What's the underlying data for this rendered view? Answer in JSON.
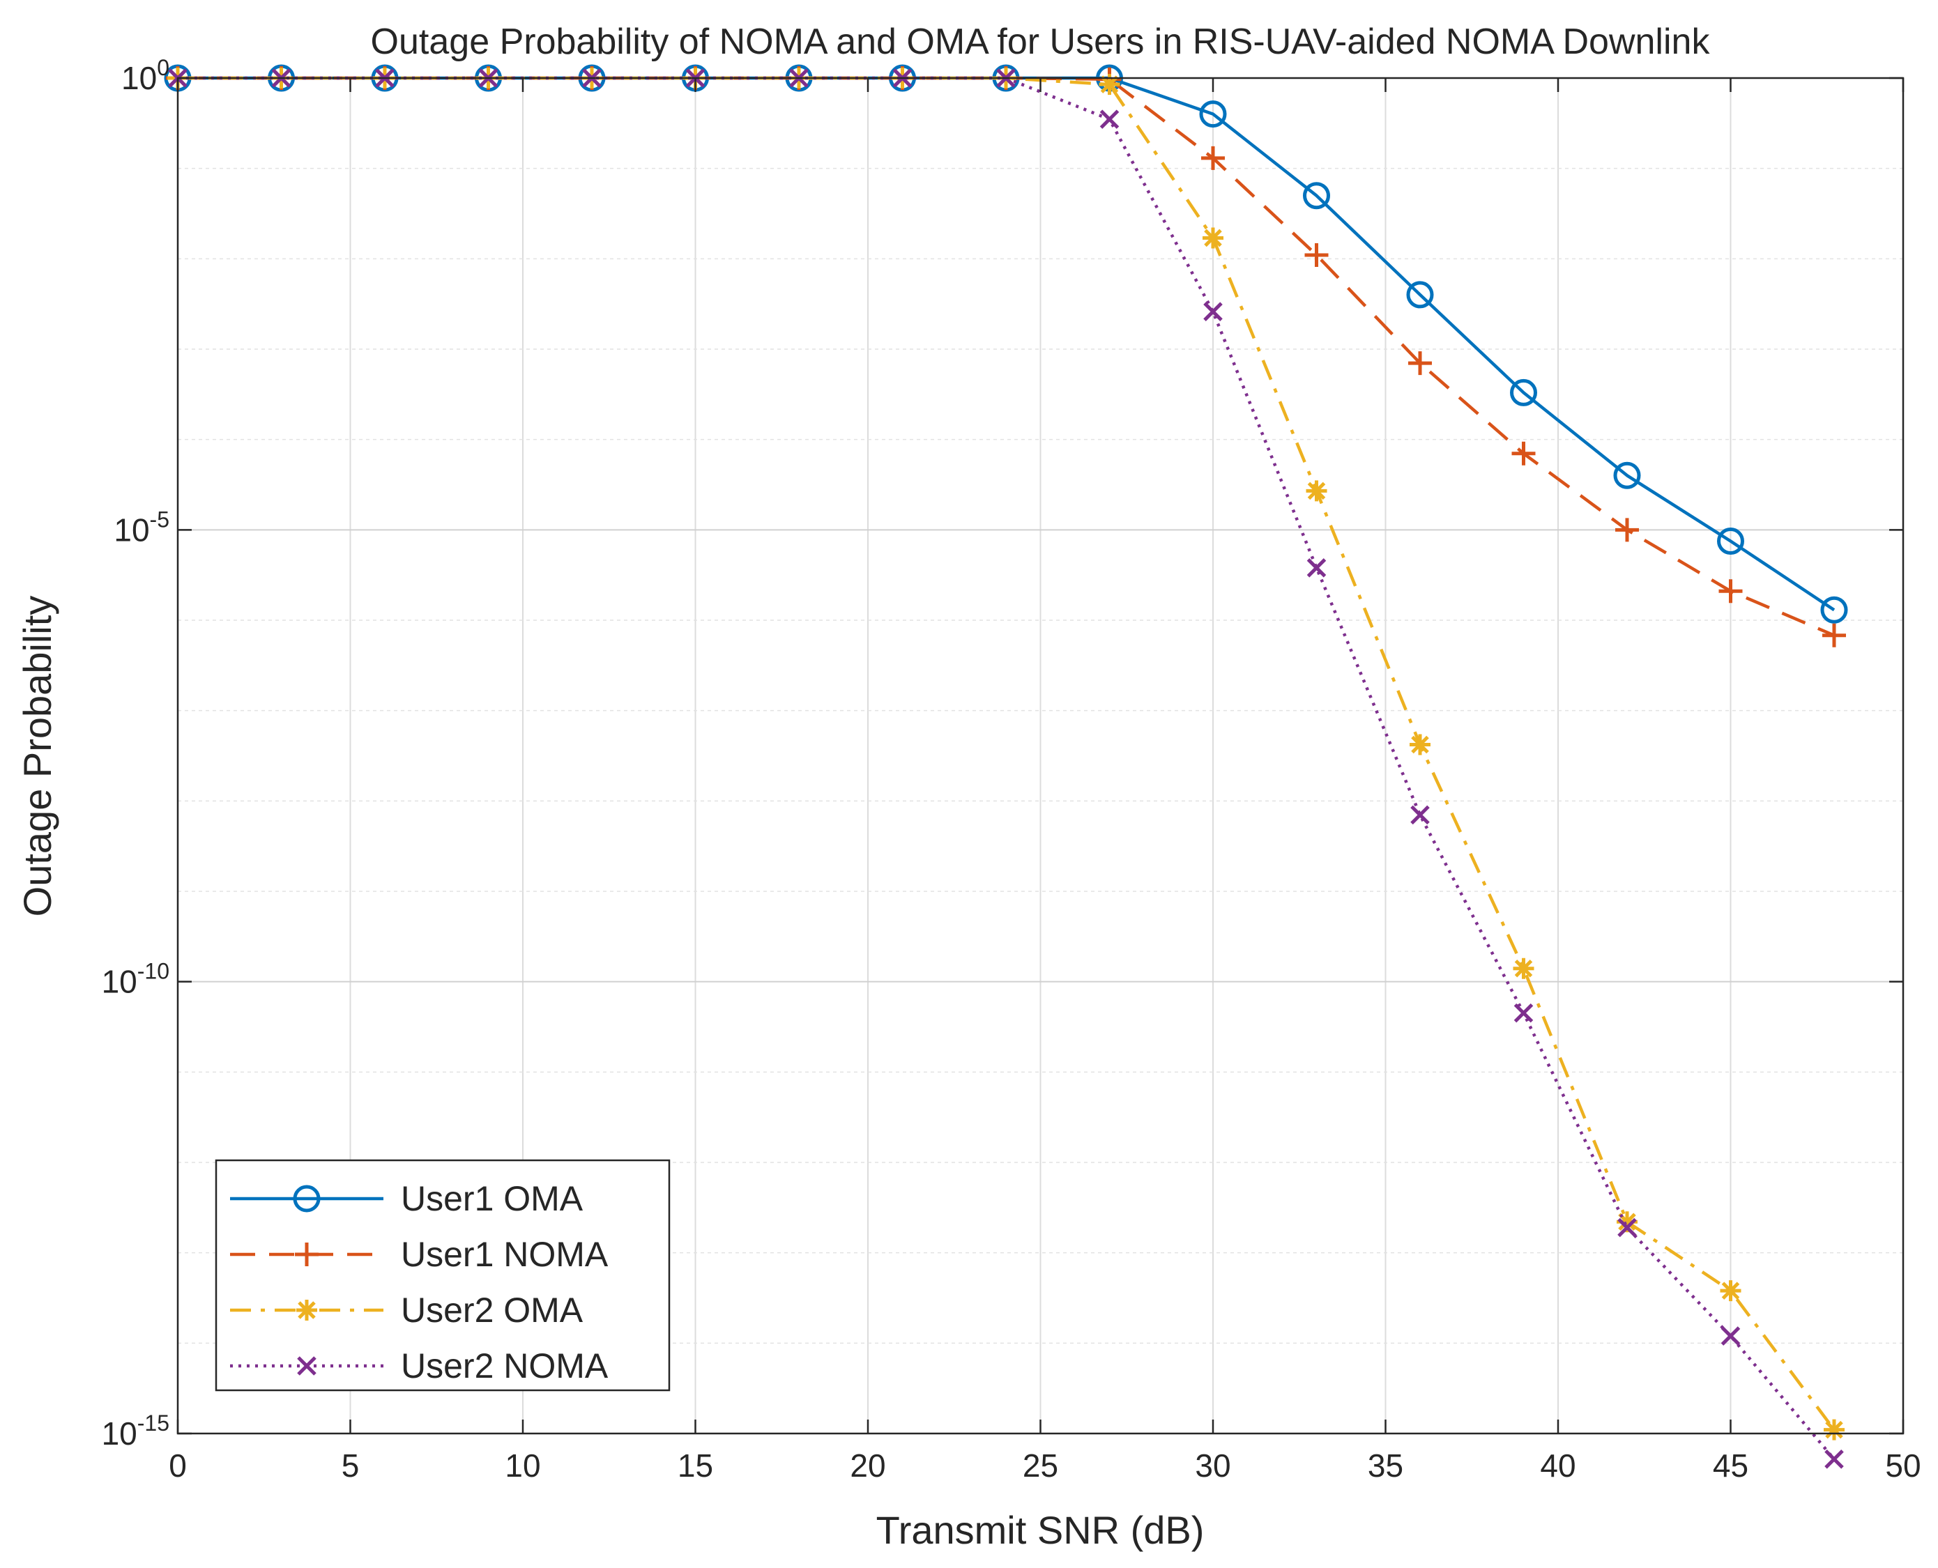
{
  "chart_data": {
    "type": "line",
    "title": "Outage Probability of NOMA and OMA for Users in RIS-UAV-aided NOMA Downlink",
    "xlabel": "Transmit SNR (dB)",
    "ylabel": "Outage Probability",
    "xlim": [
      0,
      50
    ],
    "ylim": [
      1e-15,
      1
    ],
    "yscale": "log",
    "grid": true,
    "minor_grid": true,
    "legend_location": "bottom-left",
    "x_ticks": [
      0,
      5,
      10,
      15,
      20,
      25,
      30,
      35,
      40,
      45,
      50
    ],
    "x_tick_labels": [
      "0",
      "5",
      "10",
      "15",
      "20",
      "25",
      "30",
      "35",
      "40",
      "45",
      "50"
    ],
    "y_ticks": [
      {
        "value": 1,
        "base": "10",
        "exp": "0"
      },
      {
        "value": 1e-05,
        "base": "10",
        "exp": "-5"
      },
      {
        "value": 1e-10,
        "base": "10",
        "exp": "-10"
      },
      {
        "value": 1e-15,
        "base": "10",
        "exp": "-15"
      }
    ],
    "x": [
      0,
      3,
      6,
      9,
      12,
      15,
      18,
      21,
      24,
      27,
      30,
      33,
      36,
      39,
      42,
      45,
      48
    ],
    "series": [
      {
        "name": "User1 OMA",
        "color": "#0072BD",
        "line_style": "solid",
        "marker": "circle",
        "values": [
          1,
          1,
          1,
          1,
          1,
          1,
          1,
          1,
          1,
          1,
          0.4,
          0.05,
          0.004,
          0.00033,
          4e-05,
          7.5e-06,
          1.3e-06
        ]
      },
      {
        "name": "User1 NOMA",
        "color": "#D95319",
        "line_style": "dashed",
        "marker": "plus",
        "values": [
          1,
          1,
          1,
          1,
          1,
          1,
          1,
          1,
          1,
          0.97,
          0.13,
          0.011,
          0.0007,
          7e-05,
          1e-05,
          2.1e-06,
          6.8e-07
        ]
      },
      {
        "name": "User2 OMA",
        "color": "#EDB120",
        "line_style": "dashdot",
        "marker": "asterisk",
        "values": [
          1,
          1,
          1,
          1,
          1,
          1,
          1,
          1,
          1,
          0.85,
          0.017,
          2.7e-05,
          4.2e-08,
          1.4e-10,
          2.2e-13,
          3.8e-14,
          1.1e-15
        ]
      },
      {
        "name": "User2 NOMA",
        "color": "#7E2F8E",
        "line_style": "dotted",
        "marker": "x",
        "values": [
          1,
          1,
          1,
          1,
          1,
          1,
          1,
          1,
          1,
          0.35,
          0.0026,
          3.8e-06,
          7e-09,
          4.5e-11,
          1.9e-13,
          1.2e-14,
          5.2e-16
        ]
      }
    ]
  }
}
